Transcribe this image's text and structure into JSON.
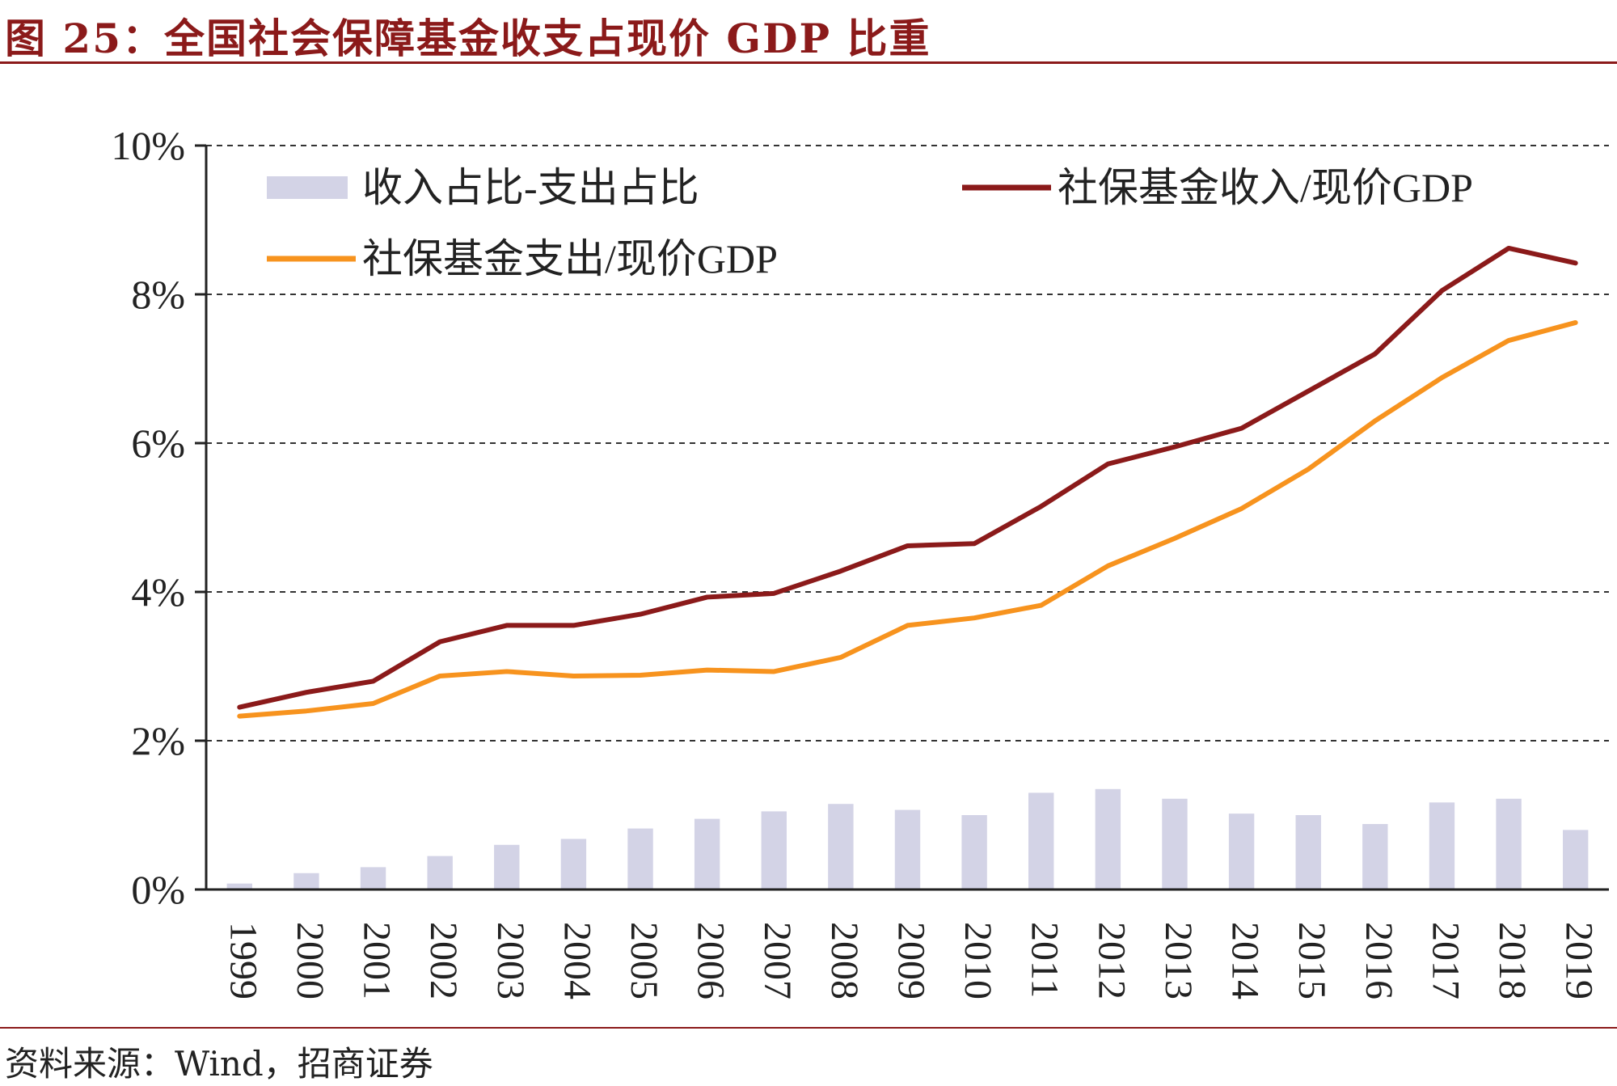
{
  "figure": {
    "title": "图 25：全国社会保障基金收支占现价 GDP 比重",
    "source": "资料来源：Wind，招商证券"
  },
  "colors": {
    "title": "#8b1a1a",
    "income": "#8b1a1a",
    "expense": "#f7931e",
    "bars": "#d3d3e6"
  },
  "chart_data": {
    "type": "bar+line",
    "categories": [
      "1999",
      "2000",
      "2001",
      "2002",
      "2003",
      "2004",
      "2005",
      "2006",
      "2007",
      "2008",
      "2009",
      "2010",
      "2011",
      "2012",
      "2013",
      "2014",
      "2015",
      "2016",
      "2017",
      "2018",
      "2019"
    ],
    "ylim": [
      0,
      10
    ],
    "yticks": [
      "0%",
      "2%",
      "4%",
      "6%",
      "8%",
      "10%"
    ],
    "ytick_values": [
      0,
      2,
      4,
      6,
      8,
      10
    ],
    "grid": true,
    "legend_position": "top",
    "series": [
      {
        "name": "收入占比-支出占比",
        "type": "bar",
        "color": "#d3d3e6",
        "values": [
          0.08,
          0.22,
          0.3,
          0.45,
          0.6,
          0.68,
          0.82,
          0.95,
          1.05,
          1.15,
          1.07,
          1.0,
          1.3,
          1.35,
          1.22,
          1.02,
          1.0,
          0.88,
          1.17,
          1.22,
          0.8
        ]
      },
      {
        "name": "社保基金收入/现价GDP",
        "type": "line",
        "color": "#8b1a1a",
        "values": [
          2.45,
          2.65,
          2.8,
          3.33,
          3.55,
          3.55,
          3.7,
          3.93,
          3.98,
          4.28,
          4.62,
          4.65,
          5.15,
          5.72,
          5.95,
          6.2,
          6.7,
          7.2,
          8.05,
          8.62,
          8.42
        ]
      },
      {
        "name": "社保基金支出/现价GDP",
        "type": "line",
        "color": "#f7931e",
        "values": [
          2.33,
          2.4,
          2.5,
          2.87,
          2.93,
          2.87,
          2.88,
          2.95,
          2.93,
          3.12,
          3.55,
          3.65,
          3.82,
          4.35,
          4.72,
          5.12,
          5.65,
          6.3,
          6.88,
          7.38,
          7.62
        ]
      }
    ]
  }
}
